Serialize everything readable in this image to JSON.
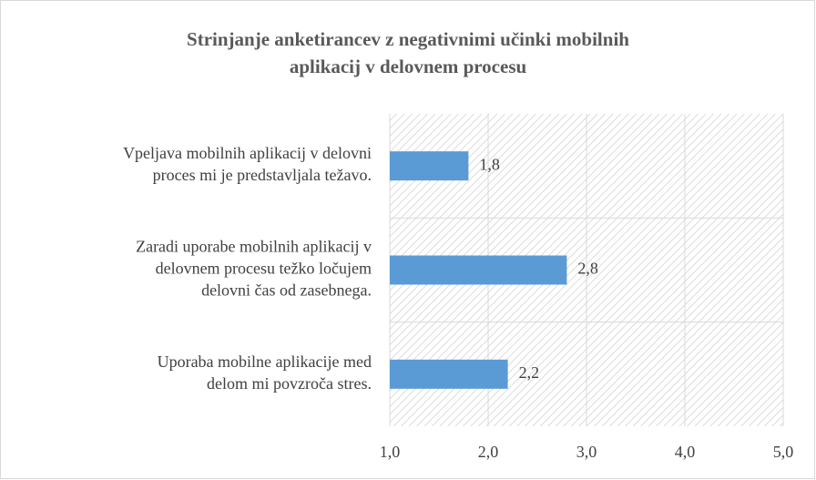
{
  "chart_data": {
    "type": "bar",
    "orientation": "horizontal",
    "title": "Strinjanje anketirancev z negativnimi učinki mobilnih\naplikacij v delovnem procesu",
    "categories": [
      "Vpeljava mobilnih aplikacij v delovni\nproces mi je predstavljala težavo.",
      "Zaradi uporabe mobilnih aplikacij v\ndelovnem procesu težko ločujem\ndelovni čas od zasebnega.",
      "Uporaba mobilne aplikacije med\ndelom mi povzroča stres."
    ],
    "values": [
      1.8,
      2.8,
      2.2
    ],
    "value_labels": [
      "1,8",
      "2,8",
      "2,2"
    ],
    "color": "#5b9bd5",
    "xlim": [
      1,
      5
    ],
    "xticks": [
      {
        "value": 1,
        "label": "1,0"
      },
      {
        "value": 2,
        "label": "2,0"
      },
      {
        "value": 3,
        "label": "3,0"
      },
      {
        "value": 4,
        "label": "4,0"
      },
      {
        "value": 5,
        "label": "5,0"
      }
    ],
    "grid": true
  }
}
